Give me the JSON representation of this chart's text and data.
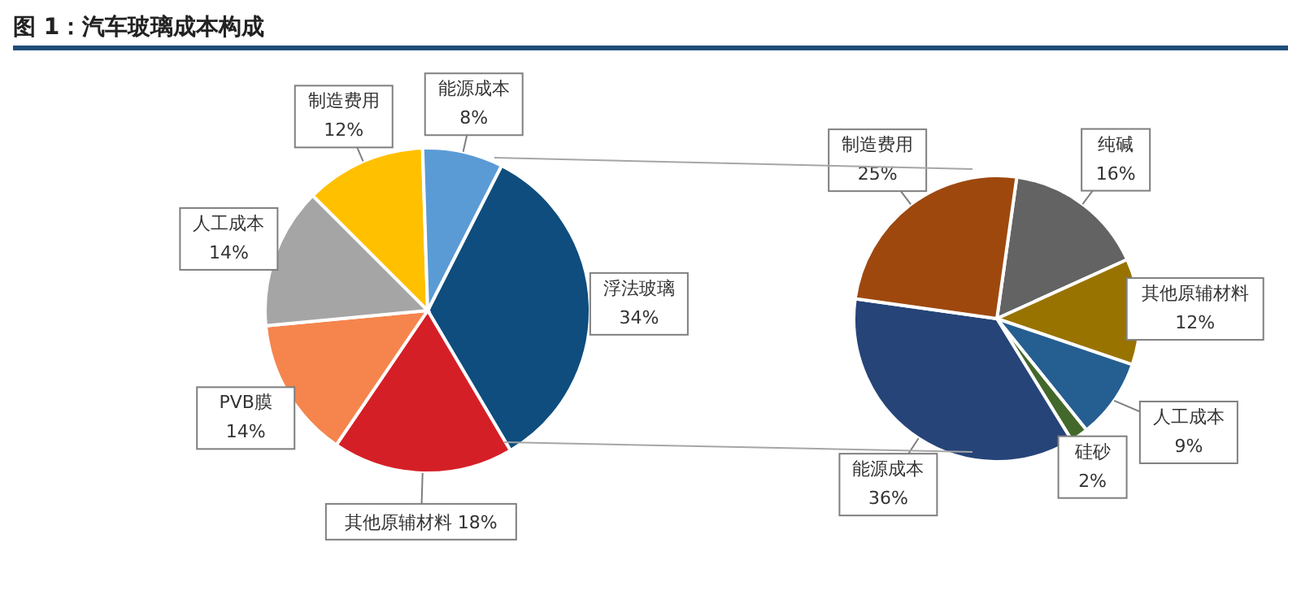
{
  "chart_data": [
    {
      "type": "pie",
      "title": "图 1：汽车玻璃成本构成",
      "categories": [
        "浮法玻璃",
        "其他原辅材料",
        "PVB膜",
        "人工成本",
        "制造费用",
        "能源成本"
      ],
      "values": [
        34,
        18,
        14,
        14,
        12,
        8
      ],
      "value_labels": [
        "34%",
        "18%",
        "14%",
        "14%",
        "12%",
        "8%"
      ],
      "colors": [
        "#0e4d7e",
        "#d51f26",
        "#f5854d",
        "#a5a5a5",
        "#ffc000",
        "#5b9bd5"
      ]
    },
    {
      "type": "pie",
      "categories": [
        "纯碱",
        "其他原辅材料",
        "人工成本",
        "硅砂",
        "能源成本",
        "制造费用"
      ],
      "values": [
        16,
        12,
        9,
        2,
        36,
        25
      ],
      "value_labels": [
        "16%",
        "12%",
        "9%",
        "2%",
        "36%",
        "25%"
      ],
      "colors": [
        "#636363",
        "#997300",
        "#255e91",
        "#43682b",
        "#264478",
        "#9e480e"
      ]
    }
  ]
}
